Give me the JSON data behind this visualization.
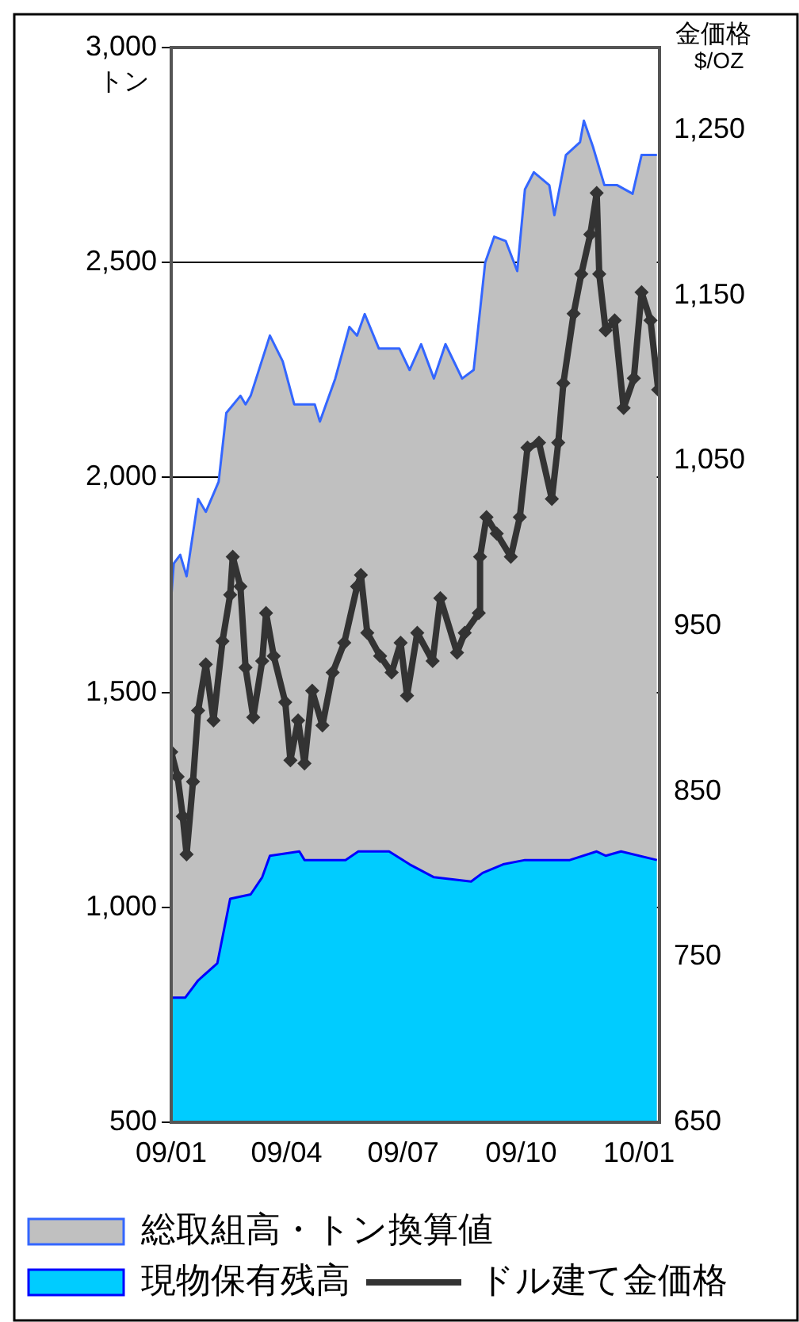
{
  "chart_data": {
    "type": "area",
    "ylabel": "トン",
    "y2label": "金価格 $/OZ",
    "xlim": [
      "2009-01-01",
      "2010-01-17"
    ],
    "xticks": [
      {
        "value": "2009-01-01",
        "label": "09/01"
      },
      {
        "value": "2009-04-01",
        "label": "09/04"
      },
      {
        "value": "2009-07-01",
        "label": "09/07"
      },
      {
        "value": "2009-10-01",
        "label": "09/10"
      },
      {
        "value": "2010-01-01",
        "label": "10/01"
      }
    ],
    "ylim": [
      500,
      3000
    ],
    "yticks": [
      500,
      {
        "value": 1000,
        "label": "1,000"
      },
      {
        "value": 1500,
        "label": "1,500"
      },
      {
        "value": 2000,
        "label": "2,000"
      },
      {
        "value": 2500,
        "label": "2,500"
      },
      {
        "value": 3000,
        "label": "3,000"
      }
    ],
    "y2lim": [
      650,
      1300
    ],
    "y2ticks": [
      650,
      750,
      850,
      950,
      {
        "value": 1050,
        "label": "1,050"
      },
      {
        "value": 1150,
        "label": "1,150"
      },
      {
        "value": 1250,
        "label": "1,250"
      }
    ],
    "grid": "y",
    "legend": "bottom",
    "series": [
      {
        "name": "総取組高・トン換算値",
        "color": "#c0c0c0",
        "x": [
          "2009-01-01",
          "2009-01-03",
          "2009-01-08",
          "2009-01-13",
          "2009-01-22",
          "2009-01-28",
          "2009-02-07",
          "2009-02-13",
          "2009-02-24",
          "2009-02-28",
          "2009-03-04",
          "2009-03-19",
          "2009-03-29",
          "2009-04-07",
          "2009-04-23",
          "2009-04-27",
          "2009-05-09",
          "2009-05-20",
          "2009-05-26",
          "2009-06-01",
          "2009-06-12",
          "2009-06-28",
          "2009-07-06",
          "2009-07-15",
          "2009-07-25",
          "2009-08-03",
          "2009-08-16",
          "2009-08-25",
          "2009-09-03",
          "2009-09-10",
          "2009-09-19",
          "2009-09-28",
          "2009-10-04",
          "2009-10-11",
          "2009-10-23",
          "2009-10-27",
          "2009-11-05",
          "2009-11-16",
          "2009-11-19",
          "2009-11-26",
          "2009-12-05",
          "2009-12-15",
          "2009-12-27",
          "2010-01-03",
          "2010-01-15"
        ],
        "values": [
          1720,
          1800,
          1820,
          1770,
          1950,
          1920,
          1990,
          2150,
          2190,
          2170,
          2190,
          2330,
          2270,
          2170,
          2170,
          2130,
          2230,
          2350,
          2330,
          2380,
          2300,
          2300,
          2250,
          2310,
          2230,
          2310,
          2230,
          2250,
          2500,
          2560,
          2550,
          2480,
          2670,
          2710,
          2680,
          2610,
          2750,
          2780,
          2830,
          2770,
          2680,
          2680,
          2660,
          2750,
          2750
        ]
      },
      {
        "name": "現物保有残高",
        "color": "#00ccff",
        "x": [
          "2009-01-01",
          "2009-01-12",
          "2009-01-22",
          "2009-02-06",
          "2009-02-16",
          "2009-03-04",
          "2009-03-13",
          "2009-03-19",
          "2009-04-11",
          "2009-04-15",
          "2009-05-17",
          "2009-05-27",
          "2009-06-20",
          "2009-07-06",
          "2009-07-25",
          "2009-08-23",
          "2009-09-01",
          "2009-09-17",
          "2009-10-04",
          "2009-11-08",
          "2009-11-29",
          "2009-12-06",
          "2009-12-18",
          "2010-01-15"
        ],
        "values": [
          790,
          790,
          830,
          870,
          1020,
          1030,
          1070,
          1120,
          1130,
          1110,
          1110,
          1130,
          1130,
          1100,
          1070,
          1060,
          1080,
          1100,
          1110,
          1110,
          1130,
          1120,
          1130,
          1110
        ]
      },
      {
        "name": "ドル建て金価格",
        "type": "line",
        "axis": "y2",
        "color": "#333333",
        "marker": "diamond",
        "x": [
          "2009-01-01",
          "2009-01-06",
          "2009-01-10",
          "2009-01-13",
          "2009-01-18",
          "2009-01-22",
          "2009-01-28",
          "2009-02-03",
          "2009-02-10",
          "2009-02-16",
          "2009-02-18",
          "2009-02-24",
          "2009-02-28",
          "2009-03-06",
          "2009-03-13",
          "2009-03-16",
          "2009-03-22",
          "2009-03-31",
          "2009-04-04",
          "2009-04-10",
          "2009-04-15",
          "2009-04-21",
          "2009-04-29",
          "2009-05-07",
          "2009-05-16",
          "2009-05-26",
          "2009-05-29",
          "2009-06-03",
          "2009-06-13",
          "2009-06-22",
          "2009-06-29",
          "2009-07-04",
          "2009-07-12",
          "2009-07-24",
          "2009-07-30",
          "2009-08-12",
          "2009-08-18",
          "2009-08-29",
          "2009-08-30",
          "2009-09-04",
          "2009-09-12",
          "2009-09-23",
          "2009-09-30",
          "2009-10-06",
          "2009-10-15",
          "2009-10-25",
          "2009-10-30",
          "2009-11-03",
          "2009-11-11",
          "2009-11-17",
          "2009-11-24",
          "2009-11-29",
          "2009-12-01",
          "2009-12-06",
          "2009-12-13",
          "2009-12-20",
          "2009-12-28",
          "2010-01-03",
          "2010-01-10",
          "2010-01-16"
        ],
        "values": [
          874,
          859,
          835,
          812,
          856,
          899,
          927,
          893,
          941,
          969,
          992,
          974,
          925,
          895,
          929,
          958,
          932,
          904,
          869,
          893,
          867,
          911,
          890,
          922,
          940,
          974,
          981,
          946,
          932,
          922,
          940,
          908,
          946,
          929,
          967,
          934,
          946,
          958,
          992,
          1016,
          1006,
          992,
          1016,
          1058,
          1061,
          1027,
          1061,
          1097,
          1139,
          1163,
          1187,
          1212,
          1163,
          1129,
          1135,
          1082,
          1100,
          1152,
          1135,
          1093
        ]
      }
    ]
  }
}
